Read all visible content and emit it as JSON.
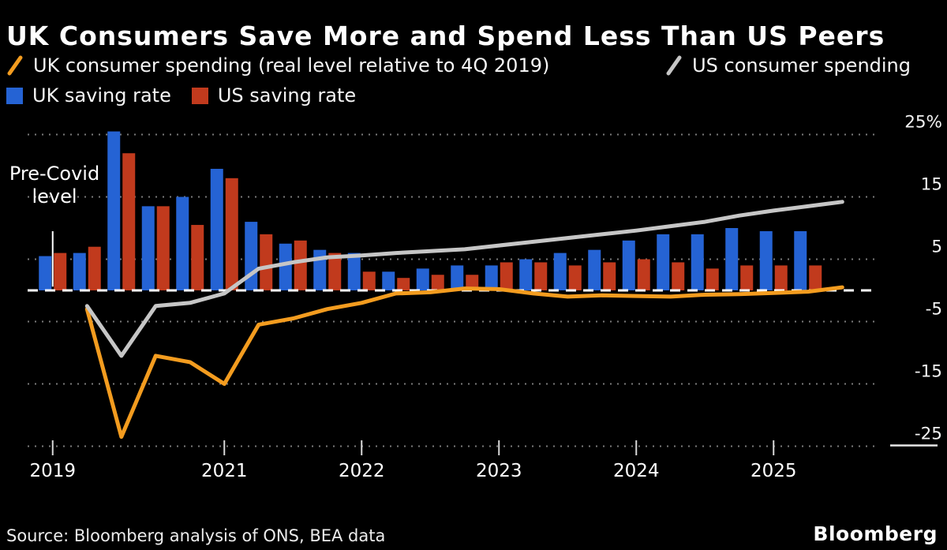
{
  "title": "UK Consumers Save More and Spend Less Than US Peers",
  "source": "Source: Bloomberg analysis of ONS, BEA data",
  "logo": "Bloomberg",
  "colors": {
    "background": "#000000",
    "title_text": "#ffffff",
    "axis_text": "#f2f2f2",
    "grid_dots": "#7a7a7a",
    "zero_line": "#ffffff",
    "tick": "#d8d8d8",
    "uk_spending_line": "#f39c1f",
    "us_spending_line": "#c6c6c6",
    "uk_saving_bar": "#2563d4",
    "us_saving_bar": "#c13a1d"
  },
  "legend": {
    "items": [
      {
        "label": "UK consumer spending (real level relative to 4Q 2019)",
        "type": "line",
        "color": "#f39c1f"
      },
      {
        "label": "US consumer spending",
        "type": "line",
        "color": "#c6c6c6"
      },
      {
        "label": "UK saving rate",
        "type": "bar",
        "color": "#2563d4"
      },
      {
        "label": "US saving rate",
        "type": "bar",
        "color": "#c13a1d"
      }
    ]
  },
  "chart_data": {
    "type": "combo_bar_line",
    "title": "UK Consumers Save More and Spend Less Than US Peers",
    "xlabel": "",
    "ylabel": "%",
    "ylim": [
      -27,
      26
    ],
    "legend_position": "top",
    "grid": "dotted-horizontal",
    "categories": [
      "Q4 2019",
      "Q1 2020",
      "Q2 2020",
      "Q3 2020",
      "Q4 2020",
      "Q1 2021",
      "Q2 2021",
      "Q3 2021",
      "Q4 2021",
      "Q1 2022",
      "Q2 2022",
      "Q3 2022",
      "Q4 2022",
      "Q1 2023",
      "Q2 2023",
      "Q3 2023",
      "Q4 2023",
      "Q1 2024",
      "Q2 2024",
      "Q3 2024",
      "Q4 2024",
      "Q1 2025",
      "Q2 2025",
      "Q3 2025"
    ],
    "bar_series": [
      {
        "name": "UK saving rate",
        "color": "#2563d4",
        "values": [
          5.5,
          6,
          25.5,
          13.5,
          15,
          19.5,
          11,
          7.5,
          6.5,
          6,
          3,
          3.5,
          4,
          4,
          5,
          6,
          6.5,
          8,
          9,
          9,
          10,
          9.5,
          9.5,
          null
        ]
      },
      {
        "name": "US saving rate",
        "color": "#c13a1d",
        "values": [
          6,
          7,
          22,
          13.5,
          10.5,
          18,
          9,
          8,
          6,
          3,
          2,
          2.5,
          2.5,
          4.5,
          4.5,
          4,
          4.5,
          5,
          4.5,
          3.5,
          4,
          4,
          4,
          null
        ]
      }
    ],
    "line_series": [
      {
        "name": "UK consumer spending (real level relative to 4Q 2019)",
        "color": "#f39c1f",
        "values": [
          null,
          -3,
          -23.5,
          -10.5,
          -11.5,
          -15,
          -5.5,
          -4.5,
          -3,
          -2,
          -0.5,
          -0.3,
          0.3,
          0.2,
          -0.5,
          -1,
          -0.8,
          -0.9,
          -1,
          -0.7,
          -0.6,
          -0.4,
          -0.2,
          0.5
        ]
      },
      {
        "name": "US consumer spending",
        "color": "#c6c6c6",
        "values": [
          null,
          -2.5,
          -10.5,
          -2.5,
          -2,
          -0.5,
          3.5,
          4.5,
          5.3,
          5.6,
          6,
          6.3,
          6.6,
          7.2,
          7.8,
          8.4,
          9,
          9.6,
          10.3,
          11,
          12,
          12.8,
          13.5,
          14.2
        ]
      }
    ],
    "y_ticks": [
      {
        "value": 25,
        "label": "25%"
      },
      {
        "value": 15,
        "label": "15"
      },
      {
        "value": 5,
        "label": "5"
      },
      {
        "value": -5,
        "label": "-5"
      },
      {
        "value": -15,
        "label": "-15"
      },
      {
        "value": -25,
        "label": "-25"
      }
    ],
    "x_ticks": [
      {
        "index": 0,
        "label": "2019"
      },
      {
        "index": 5,
        "label": "2021"
      },
      {
        "index": 9,
        "label": "2022"
      },
      {
        "index": 13,
        "label": "2023"
      },
      {
        "index": 17,
        "label": "2024"
      },
      {
        "index": 21,
        "label": "2025"
      }
    ],
    "zero_line": {
      "value": 0,
      "style": "dashed"
    },
    "annotation": {
      "lines": [
        "Pre-Covid",
        "level"
      ],
      "marker": {
        "index": 0,
        "from_value": 9.5,
        "to_value": 0.6
      }
    }
  }
}
